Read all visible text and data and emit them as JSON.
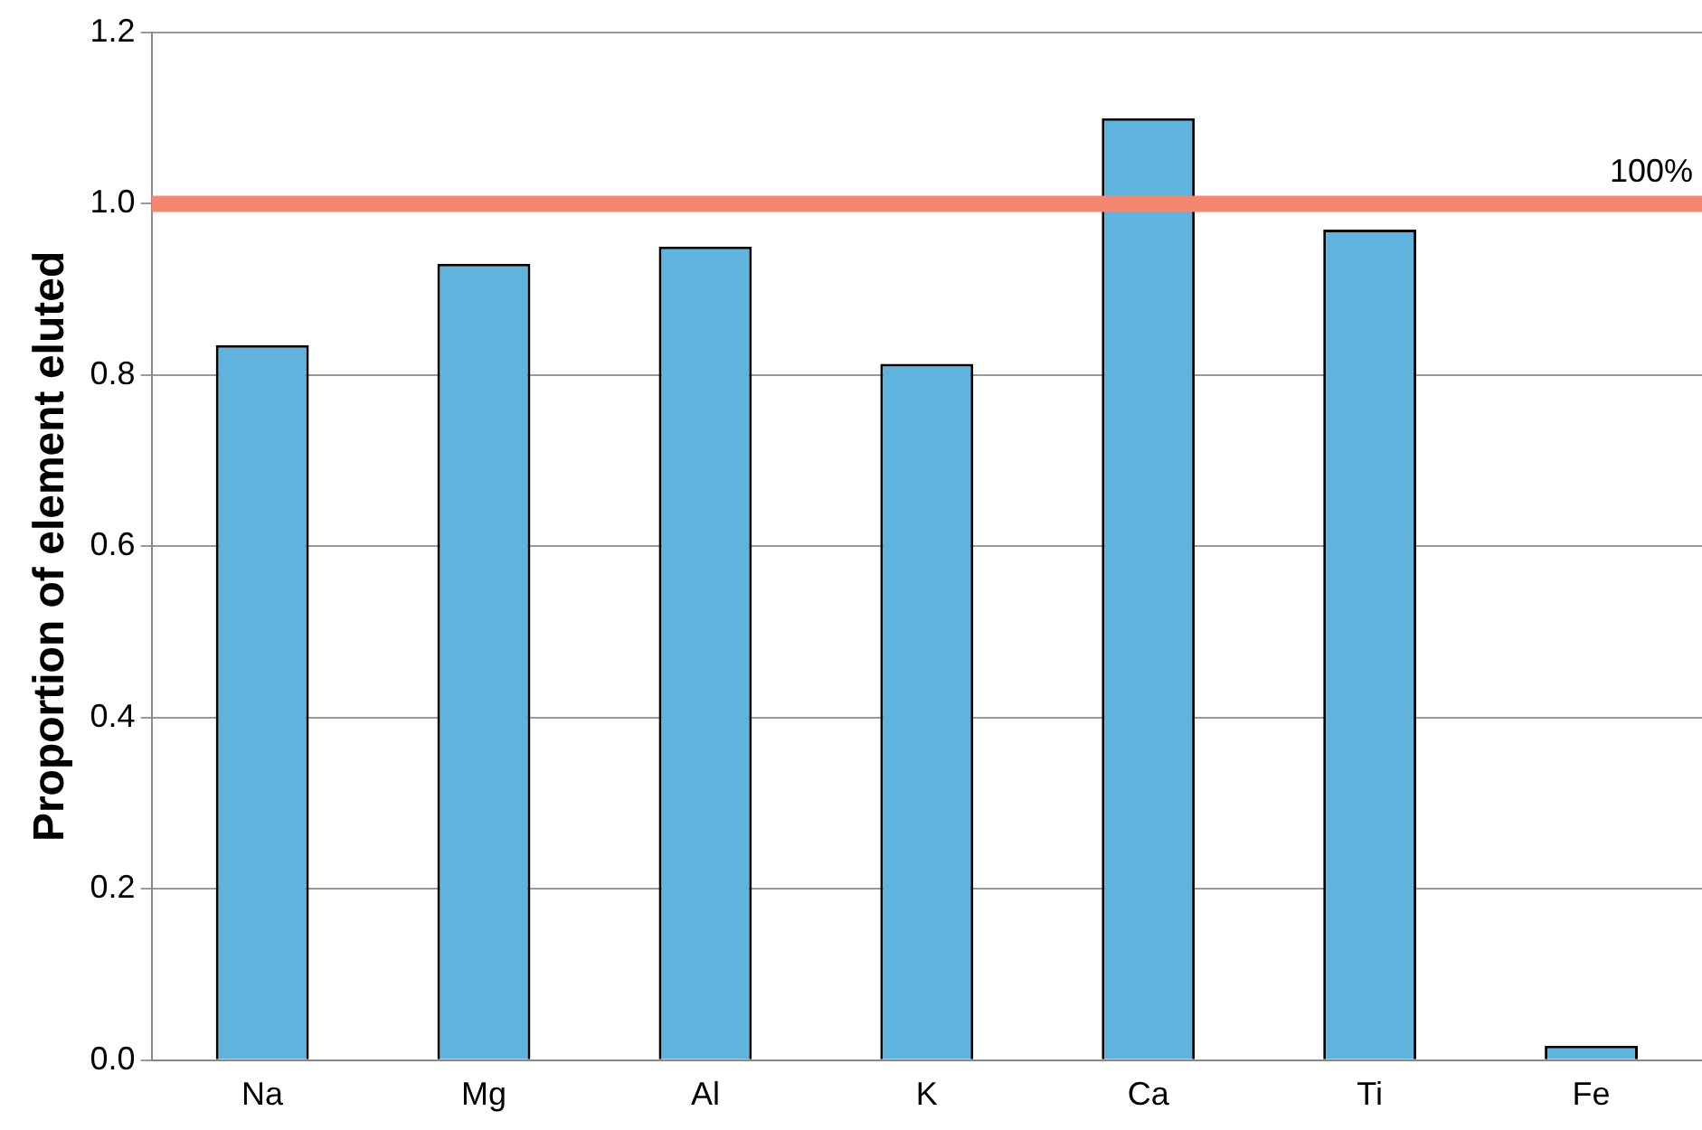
{
  "chart_data": {
    "type": "bar",
    "ylabel": "Proportion of element eluted",
    "categories": [
      "Na",
      "Mg",
      "Al",
      "K",
      "Ca",
      "Ti",
      "Fe"
    ],
    "values": [
      0.835,
      0.93,
      0.95,
      0.813,
      1.1,
      0.97,
      0.017
    ],
    "color": "#5fb3dc",
    "ylim": [
      0,
      1.2
    ],
    "yticks": [
      {
        "value": 0,
        "label": "0.0"
      },
      0.2,
      0.4,
      0.6,
      0.8,
      {
        "value": 1,
        "label": "1.0"
      },
      1.2
    ],
    "grid": "y",
    "ref_lines": [
      {
        "axis": "y",
        "value": 1,
        "label": "100%",
        "color": "#f4876f"
      }
    ]
  }
}
